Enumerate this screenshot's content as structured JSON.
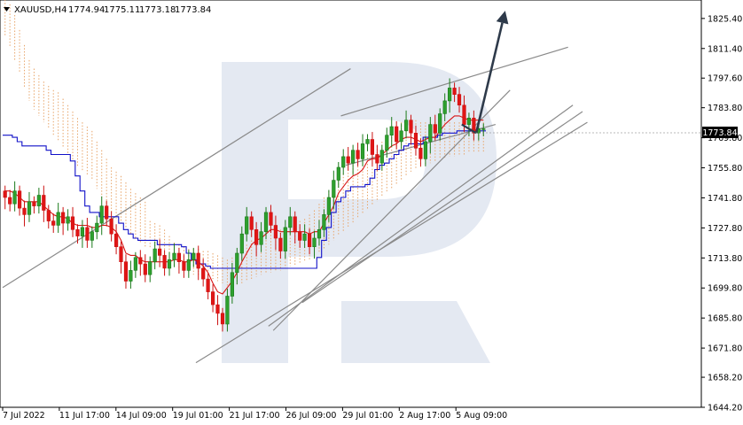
{
  "header": {
    "symbol": "XAUUSD,H4",
    "open": "1774.94",
    "high": "1775.11",
    "low": "1773.18",
    "close": "1773.84"
  },
  "chart_data": {
    "type": "candlestick",
    "symbol": "XAUUSD",
    "timeframe": "H4",
    "ylim": [
      1644.2,
      1834.0
    ],
    "y_ticks": [
      "1825.40",
      "1811.40",
      "1797.60",
      "1783.80",
      "1769.80",
      "1755.80",
      "1741.80",
      "1727.80",
      "1713.80",
      "1699.80",
      "1685.80",
      "1671.80",
      "1658.20",
      "1644.20"
    ],
    "x_ticks": [
      "7 Jul 2022",
      "11 Jul 17:00",
      "14 Jul 09:00",
      "19 Jul 01:00",
      "21 Jul 17:00",
      "26 Jul 09:00",
      "29 Jul 01:00",
      "2 Aug 17:00",
      "5 Aug 09:00"
    ],
    "current_price": "1773.84",
    "closes": [
      1742,
      1739,
      1745,
      1737,
      1734,
      1740,
      1738,
      1743,
      1736,
      1731,
      1729,
      1735,
      1730,
      1733,
      1727,
      1724,
      1728,
      1722,
      1726,
      1730,
      1738,
      1732,
      1725,
      1719,
      1712,
      1703,
      1708,
      1714,
      1711,
      1706,
      1712,
      1718,
      1715,
      1709,
      1713,
      1716,
      1712,
      1708,
      1713,
      1716,
      1709,
      1704,
      1698,
      1692,
      1688,
      1683,
      1696,
      1707,
      1716,
      1725,
      1733,
      1727,
      1720,
      1726,
      1735,
      1729,
      1723,
      1717,
      1728,
      1733,
      1726,
      1722,
      1725,
      1719,
      1723,
      1727,
      1734,
      1742,
      1750,
      1756,
      1761,
      1758,
      1764,
      1760,
      1767,
      1769,
      1762,
      1758,
      1764,
      1771,
      1775,
      1768,
      1773,
      1778,
      1772,
      1765,
      1760,
      1768,
      1776,
      1772,
      1781,
      1787,
      1793,
      1790,
      1785,
      1776,
      1779,
      1772,
      1774,
      1774
    ],
    "tenkan": [
      1745,
      1745,
      1744,
      1742,
      1740,
      1740,
      1740,
      1740,
      1738,
      1736,
      1734,
      1733,
      1733,
      1732,
      1730,
      1729,
      1729,
      1729,
      1728,
      1728,
      1729,
      1729,
      1728,
      1726,
      1722,
      1716,
      1715,
      1715,
      1713,
      1712,
      1712,
      1712,
      1712,
      1712,
      1712,
      1713,
      1713,
      1712,
      1712,
      1713,
      1712,
      1710,
      1707,
      1702,
      1698,
      1697,
      1700,
      1703,
      1707,
      1712,
      1716,
      1720,
      1722,
      1723,
      1725,
      1727,
      1727,
      1726,
      1726,
      1726,
      1726,
      1726,
      1726,
      1725,
      1726,
      1726,
      1730,
      1734,
      1738,
      1744,
      1747,
      1750,
      1752,
      1753,
      1755,
      1759,
      1760,
      1760,
      1762,
      1764,
      1766,
      1767,
      1769,
      1770,
      1770,
      1769,
      1768,
      1769,
      1770,
      1770,
      1773,
      1776,
      1778,
      1780,
      1780,
      1779,
      1778,
      1778,
      1778,
      1778
    ],
    "kijun": [
      1771,
      1771,
      1770,
      1768,
      1766,
      1766,
      1766,
      1766,
      1766,
      1764,
      1762,
      1762,
      1762,
      1762,
      1759,
      1752,
      1745,
      1738,
      1735,
      1735,
      1733,
      1733,
      1733,
      1733,
      1730,
      1727,
      1725,
      1723,
      1722,
      1722,
      1722,
      1722,
      1720,
      1720,
      1720,
      1720,
      1720,
      1719,
      1716,
      1713,
      1711,
      1711,
      1710,
      1709,
      1709,
      1709,
      1709,
      1709,
      1709,
      1709,
      1709,
      1709,
      1709,
      1709,
      1709,
      1709,
      1709,
      1709,
      1709,
      1709,
      1709,
      1709,
      1709,
      1709,
      1709,
      1714,
      1722,
      1728,
      1735,
      1740,
      1742,
      1745,
      1747,
      1747,
      1747,
      1748,
      1751,
      1755,
      1757,
      1758,
      1760,
      1762,
      1764,
      1766,
      1767,
      1767,
      1767,
      1770,
      1770,
      1770,
      1771,
      1772,
      1772,
      1772,
      1773,
      1773,
      1773,
      1773,
      1773,
      1773
    ],
    "cloud_a": [
      1827,
      1822,
      1817,
      1810,
      1803,
      1796,
      1792,
      1789,
      1786,
      1784,
      1782,
      1781,
      1778,
      1775,
      1772,
      1769,
      1767,
      1765,
      1763,
      1758,
      1754,
      1750,
      1746,
      1744,
      1742,
      1739,
      1736,
      1734,
      1732,
      1730,
      1729,
      1728,
      1727,
      1725,
      1722,
      1719,
      1718,
      1717,
      1716,
      1716,
      1716,
      1715,
      1715,
      1714,
      1713,
      1712,
      1711,
      1712,
      1713,
      1715,
      1718,
      1720,
      1722,
      1723,
      1723,
      1724,
      1724,
      1725,
      1726,
      1727,
      1728,
      1729,
      1730,
      1732,
      1734,
      1737,
      1740,
      1743,
      1746,
      1748,
      1751,
      1753,
      1755,
      1756,
      1758,
      1760,
      1762,
      1764,
      1766,
      1768,
      1771,
      1773,
      1775,
      1777,
      1777,
      1776,
      1775,
      1775,
      1775,
      1775,
      1775,
      1775,
      1775,
      1775,
      1775,
      1775,
      1775,
      1775,
      1775,
      1775
    ],
    "cloud_b": [
      1823,
      1818,
      1812,
      1806,
      1799,
      1793,
      1789,
      1786,
      1783,
      1780,
      1777,
      1774,
      1771,
      1768,
      1765,
      1762,
      1760,
      1758,
      1756,
      1752,
      1748,
      1744,
      1741,
      1738,
      1736,
      1734,
      1731,
      1729,
      1727,
      1725,
      1724,
      1723,
      1722,
      1720,
      1718,
      1716,
      1715,
      1714,
      1713,
      1712,
      1712,
      1711,
      1711,
      1710,
      1709,
      1708,
      1707,
      1707,
      1707,
      1708,
      1709,
      1710,
      1711,
      1712,
      1713,
      1713,
      1714,
      1714,
      1715,
      1716,
      1716,
      1717,
      1718,
      1719,
      1720,
      1722,
      1724,
      1726,
      1728,
      1730,
      1732,
      1734,
      1736,
      1738,
      1740,
      1742,
      1744,
      1746,
      1748,
      1750,
      1752,
      1754,
      1756,
      1758,
      1760,
      1761,
      1762,
      1763,
      1764,
      1765,
      1766,
      1766,
      1767,
      1767,
      1768,
      1768,
      1769,
      1769,
      1769,
      1769
    ],
    "trendlines": [
      {
        "from": [
          0,
          1700
        ],
        "to": [
          72,
          1802
        ]
      },
      {
        "from": [
          55,
          1682
        ],
        "to": [
          118,
          1785
        ]
      },
      {
        "from": [
          40,
          1665
        ],
        "to": [
          121,
          1777
        ]
      },
      {
        "from": [
          62,
          1693
        ],
        "to": [
          120,
          1782
        ]
      },
      {
        "from": [
          56,
          1680
        ],
        "to": [
          105,
          1792
        ]
      },
      {
        "from": [
          70,
          1780
        ],
        "to": [
          117,
          1812
        ]
      },
      {
        "from": [
          71,
          1757
        ],
        "to": [
          102,
          1776
        ]
      }
    ],
    "forecast_arrow": {
      "from": [
        98,
        1772
      ],
      "to": [
        104,
        1829
      ]
    }
  }
}
